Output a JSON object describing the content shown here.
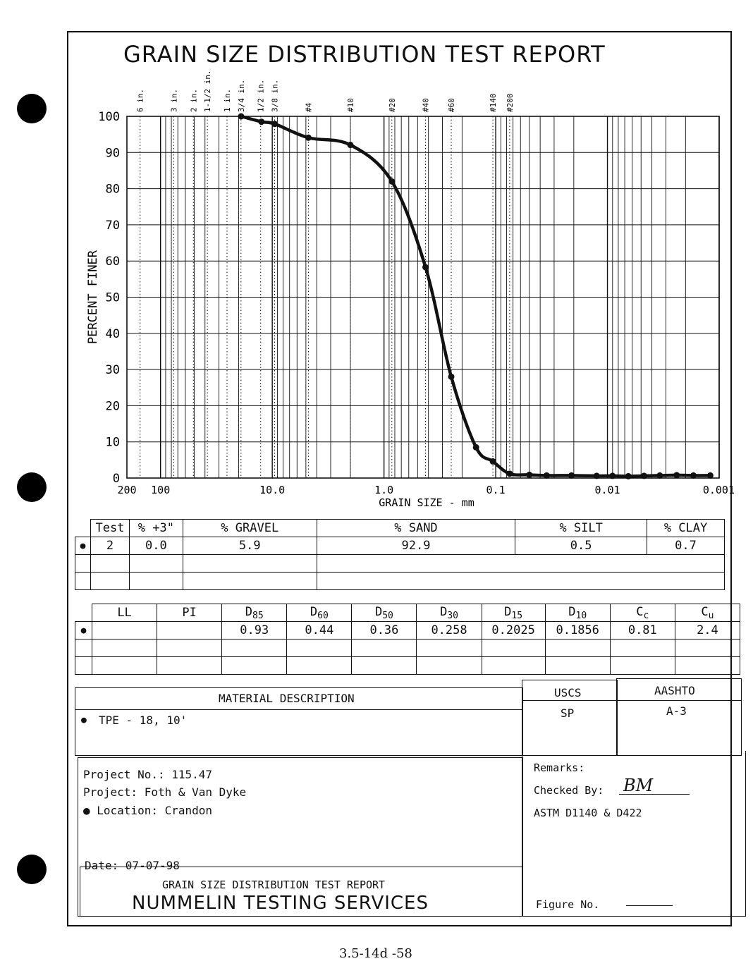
{
  "report_title": "GRAIN SIZE DISTRIBUTION TEST REPORT",
  "sieve_labels": [
    "6 in.",
    "3 in.",
    "2 in.",
    "1-1/2 in.",
    "1 in.",
    "3/4 in.",
    "1/2 in.",
    "3/8 in.",
    "#4",
    "#10",
    "#20",
    "#40",
    "#60",
    "#140",
    "#200"
  ],
  "chart_data": {
    "type": "line",
    "title": "GRAIN SIZE DISTRIBUTION TEST REPORT",
    "xlabel": "GRAIN SIZE - mm",
    "ylabel": "PERCENT FINER",
    "x_scale": "log",
    "x_reversed": true,
    "xlim": [
      200,
      0.001
    ],
    "ylim": [
      0,
      100
    ],
    "x_tick_labels": [
      "200",
      "100",
      "10.0",
      "1.0",
      "0.1",
      "0.01",
      "0.001"
    ],
    "y_tick_labels": [
      "100",
      "90",
      "80",
      "70",
      "60",
      "50",
      "40",
      "30",
      "20",
      "10",
      "0"
    ],
    "grid": true,
    "series": [
      {
        "x": [
          19,
          12.5,
          9.5,
          4.75,
          2.0,
          0.85,
          0.425,
          0.25,
          0.15,
          0.106,
          0.075,
          0.05,
          0.035,
          0.021,
          0.0125,
          0.009,
          0.0065,
          0.0047,
          0.0034,
          0.0024,
          0.0017,
          0.0012
        ],
        "y": [
          100,
          98.5,
          97.9,
          94.1,
          92.1,
          82,
          58.3,
          28,
          8.5,
          4.6,
          1.2,
          0.9,
          0.7,
          0.7,
          0.6,
          0.6,
          0.5,
          0.6,
          0.7,
          0.8,
          0.7,
          0.7
        ]
      }
    ]
  },
  "table1": {
    "headers": [
      "Test",
      "% +3\"",
      "% GRAVEL",
      "% SAND",
      "% SILT",
      "% CLAY"
    ],
    "row": [
      "●",
      "2",
      "0.0",
      "5.9",
      "92.9",
      "0.5",
      "0.7"
    ]
  },
  "table2": {
    "headers": [
      "LL",
      "PI",
      "85",
      "60",
      "50",
      "30",
      "15",
      "10",
      "c",
      "u"
    ],
    "row": [
      "●",
      "",
      "",
      "0.93",
      "0.44",
      "0.36",
      "0.258",
      "0.2025",
      "0.1856",
      "0.81",
      "2.4"
    ]
  },
  "material": {
    "header": "MATERIAL DESCRIPTION",
    "uscs_header": "USCS",
    "aashto_header": "AASHTO",
    "bullet": "●",
    "description": "TPE - 18, 10'",
    "uscs": "SP",
    "aashto": "A-3"
  },
  "project": {
    "number": "Project No.: 115.47",
    "name": "Project: Foth & Van Dyke",
    "location": "● Location: Crandon",
    "date": "Date: 07-07-98",
    "footer_title": "GRAIN SIZE DISTRIBUTION TEST REPORT",
    "company": "NUMMELIN TESTING SERVICES"
  },
  "remarks": {
    "label": "Remarks:",
    "checked_by": "Checked By:",
    "checked_sig": "BM",
    "standard": "ASTM D1140 & D422",
    "figure_no": "Figure No."
  },
  "page_number": "3.5-14d -58"
}
